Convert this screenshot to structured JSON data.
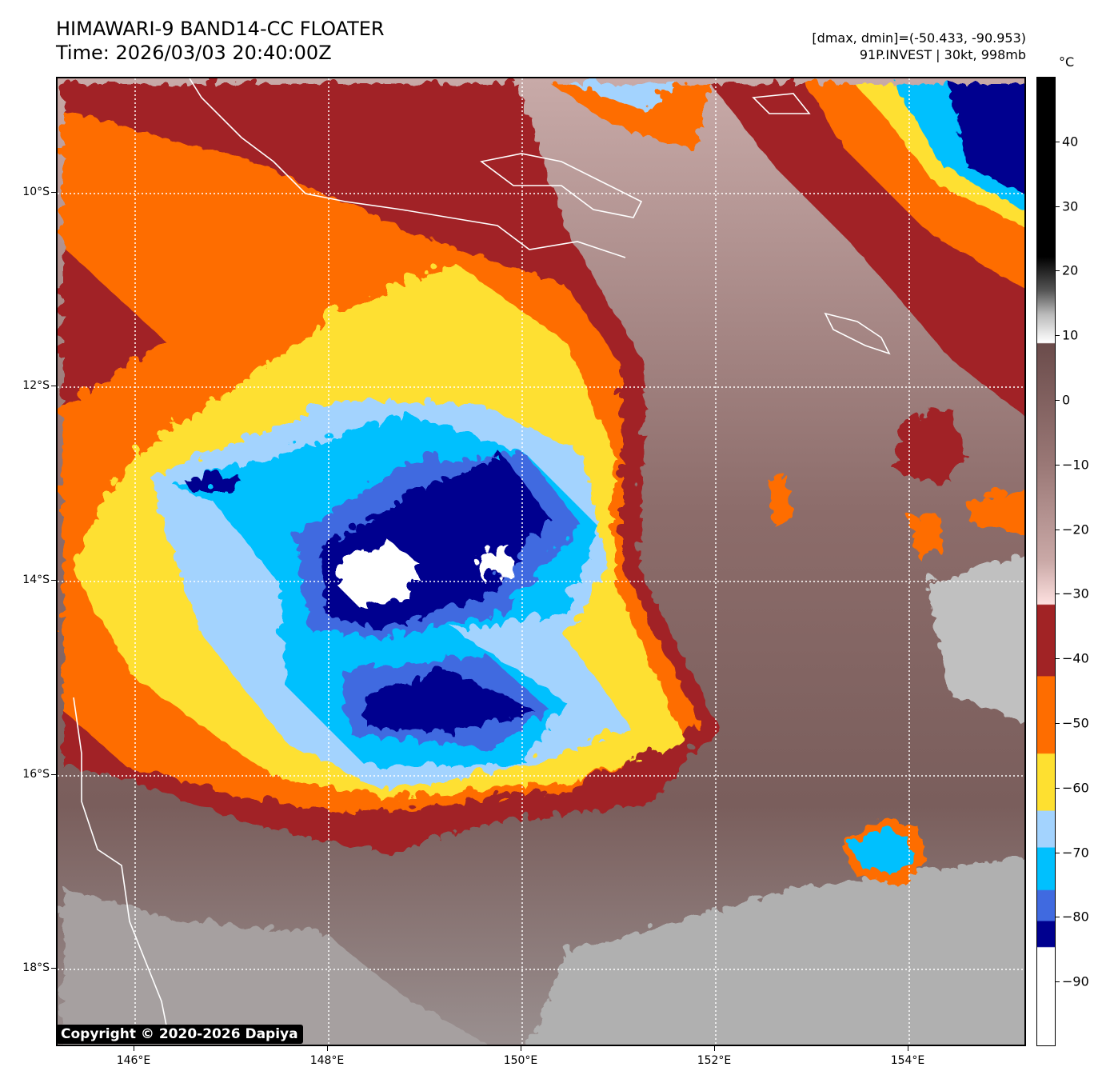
{
  "header": {
    "title": "HIMAWARI-9 BAND14-CC FLOATER",
    "time": "Time: 2026/03/03 20:40:00Z",
    "range": "[dmax, dmin]=(-50.433, -90.953)",
    "storm": "91P.INVEST | 30kt, 998mb"
  },
  "colorbar": {
    "unit": "°C",
    "ticks": [
      "40",
      "30",
      "20",
      "10",
      "0",
      "−10",
      "−20",
      "−30",
      "−40",
      "−50",
      "−60",
      "−70",
      "−80",
      "−90"
    ],
    "tick_values": [
      40,
      30,
      20,
      10,
      0,
      -10,
      -20,
      -30,
      -40,
      -50,
      -60,
      -70,
      -80,
      -90
    ],
    "range": [
      -100,
      50
    ],
    "colors": {
      "red": "#a12325",
      "orange": "#fe6d00",
      "yellow": "#fee030",
      "lightblue": "#a3d3fe",
      "cyan": "#00c0fe",
      "blue": "#406ae0",
      "navy": "#00008f"
    }
  },
  "axes": {
    "lat_labels": [
      "10°S",
      "12°S",
      "14°S",
      "16°S",
      "18°S"
    ],
    "lon_labels": [
      "146°E",
      "148°E",
      "150°E",
      "152°E",
      "154°E"
    ]
  },
  "copyright": "Copyright © 2020-2026 Dapiya"
}
